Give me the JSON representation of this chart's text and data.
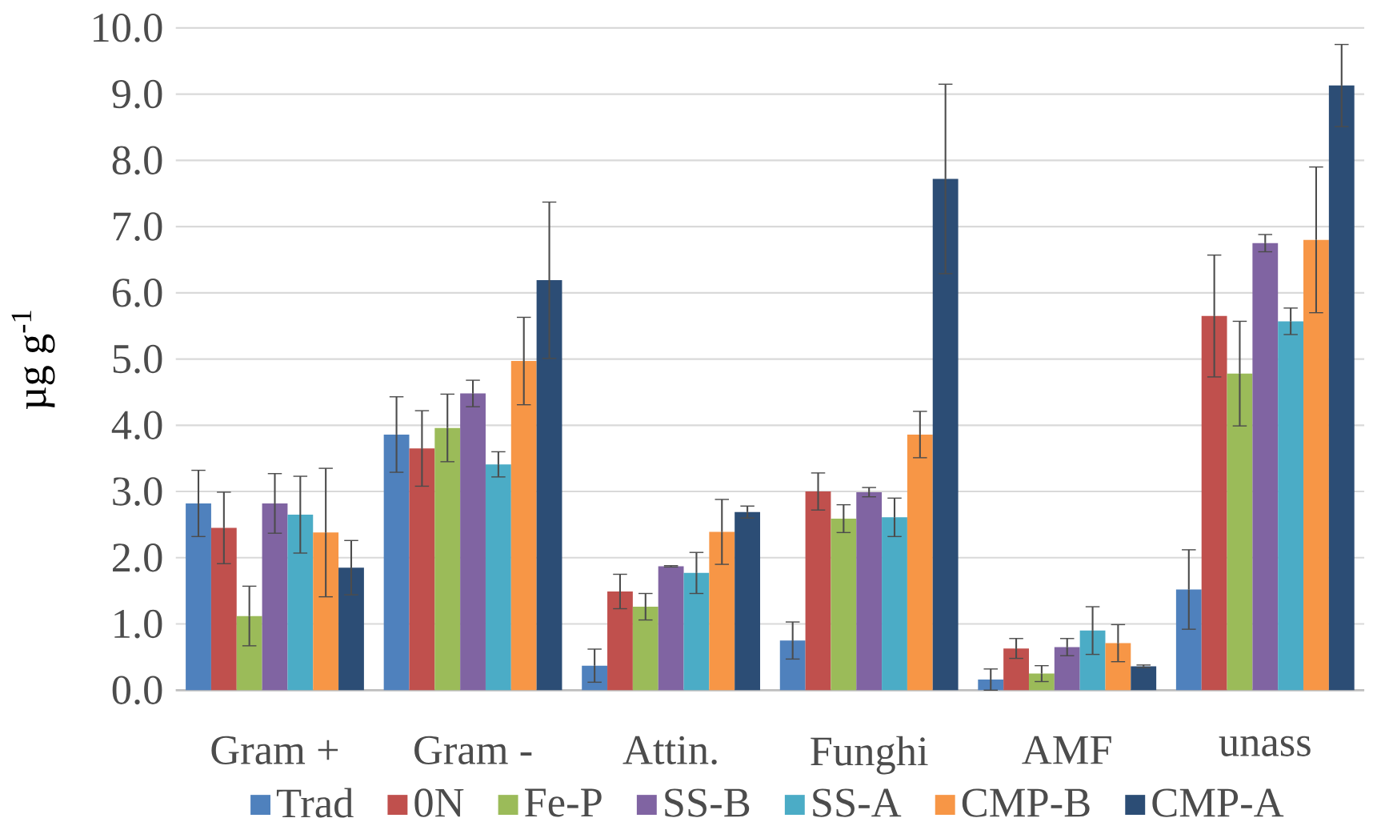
{
  "chart_data": {
    "type": "bar",
    "ylabel": "µg g$^{-1}$",
    "categories": [
      "Gram +",
      "Gram -",
      "Attin.",
      "Funghi",
      "AMF",
      "unass"
    ],
    "series": [
      {
        "name": "Trad",
        "color": "#4f81bd",
        "values": [
          2.82,
          3.86,
          0.37,
          0.75,
          0.16,
          1.52
        ],
        "errors": [
          0.5,
          0.57,
          0.25,
          0.28,
          0.16,
          0.6
        ]
      },
      {
        "name": "0N",
        "color": "#c0504d",
        "values": [
          2.45,
          3.65,
          1.49,
          3.0,
          0.63,
          5.65
        ],
        "errors": [
          0.54,
          0.57,
          0.26,
          0.28,
          0.15,
          0.92
        ]
      },
      {
        "name": "Fe-P",
        "color": "#9bbb59",
        "values": [
          1.12,
          3.96,
          1.26,
          2.59,
          0.25,
          4.78
        ],
        "errors": [
          0.45,
          0.51,
          0.2,
          0.21,
          0.12,
          0.79
        ]
      },
      {
        "name": "SS-B",
        "color": "#8064a2",
        "values": [
          2.82,
          4.48,
          1.87,
          2.99,
          0.65,
          6.75
        ],
        "errors": [
          0.45,
          0.2,
          0.01,
          0.07,
          0.13,
          0.13
        ]
      },
      {
        "name": "SS-A",
        "color": "#4bacc6",
        "values": [
          2.65,
          3.41,
          1.77,
          2.61,
          0.9,
          5.57
        ],
        "errors": [
          0.58,
          0.19,
          0.31,
          0.29,
          0.36,
          0.2
        ]
      },
      {
        "name": "CMP-B",
        "color": "#f79646",
        "values": [
          2.38,
          4.97,
          2.39,
          3.86,
          0.71,
          6.8
        ],
        "errors": [
          0.97,
          0.66,
          0.49,
          0.35,
          0.28,
          1.1
        ]
      },
      {
        "name": "CMP-A",
        "color": "#2c4d75",
        "values": [
          1.85,
          6.19,
          2.69,
          7.72,
          0.36,
          9.13
        ],
        "errors": [
          0.41,
          1.18,
          0.09,
          1.43,
          0.02,
          0.62
        ]
      }
    ],
    "ylim": [
      0,
      10
    ],
    "yticks": [
      {
        "value": 0,
        "label": "0.0"
      },
      {
        "value": 1,
        "label": "1.0"
      },
      {
        "value": 2,
        "label": "2.0"
      },
      {
        "value": 3,
        "label": "3.0"
      },
      {
        "value": 4,
        "label": "4.0"
      },
      {
        "value": 5,
        "label": "5.0"
      },
      {
        "value": 6,
        "label": "6.0"
      },
      {
        "value": 7,
        "label": "7.0"
      },
      {
        "value": 8,
        "label": "8.0"
      },
      {
        "value": 9,
        "label": "9.0"
      },
      {
        "value": 10,
        "label": "10.0"
      }
    ],
    "grid": "y",
    "legend": "bottom"
  }
}
